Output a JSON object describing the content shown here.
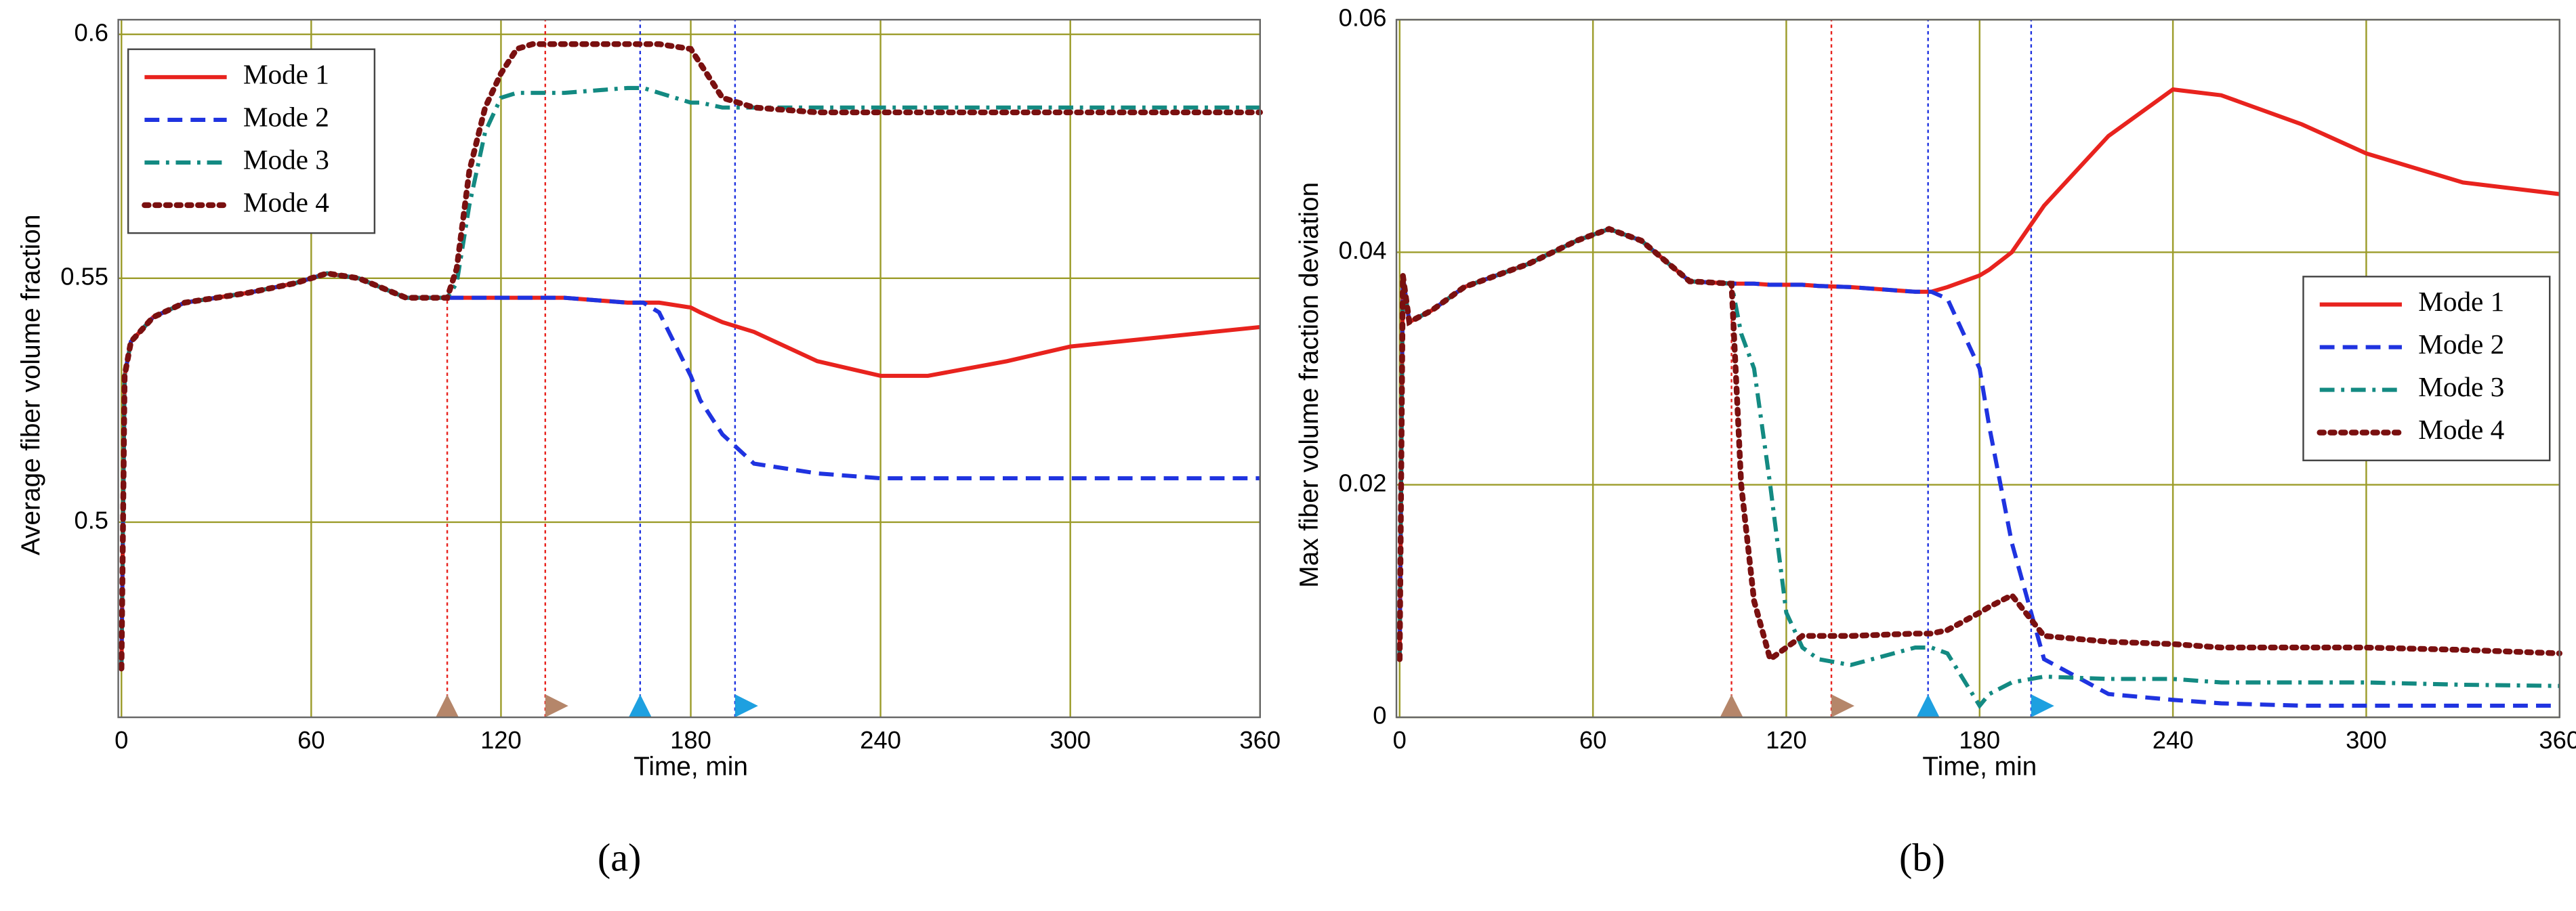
{
  "chart_data": [
    {
      "type": "line",
      "caption": "(a)",
      "x_label": "Time, min",
      "y_label": "Average fiber volume fraction",
      "xlim": [
        -1,
        360
      ],
      "ylim": [
        0.46,
        0.603
      ],
      "xticks": [
        0,
        60,
        120,
        180,
        240,
        300,
        360
      ],
      "yticks": [
        0.5,
        0.55,
        0.6
      ],
      "grid": true,
      "legend": "upper left",
      "x": [
        0,
        1,
        3,
        10,
        20,
        40,
        55,
        65,
        75,
        90,
        103,
        106,
        110,
        115,
        120,
        125,
        130,
        140,
        160,
        165,
        170,
        180,
        183,
        190,
        200,
        220,
        240,
        255,
        280,
        300,
        330,
        360
      ],
      "series": [
        {
          "name": "Mode 1",
          "color": "#e8231e",
          "style": "solid",
          "values": [
            0.47,
            0.53,
            0.537,
            0.542,
            0.545,
            0.547,
            0.549,
            0.551,
            0.55,
            0.546,
            0.546,
            0.546,
            0.546,
            0.546,
            0.546,
            0.546,
            0.546,
            0.546,
            0.545,
            0.545,
            0.545,
            0.544,
            0.543,
            0.541,
            0.539,
            0.533,
            0.53,
            0.53,
            0.533,
            0.536,
            0.538,
            0.54
          ]
        },
        {
          "name": "Mode 2",
          "color": "#1f33e0",
          "style": "dashed",
          "values": [
            0.47,
            0.53,
            0.537,
            0.542,
            0.545,
            0.547,
            0.549,
            0.551,
            0.55,
            0.546,
            0.546,
            0.546,
            0.546,
            0.546,
            0.546,
            0.546,
            0.546,
            0.546,
            0.545,
            0.545,
            0.543,
            0.53,
            0.525,
            0.518,
            0.512,
            0.51,
            0.509,
            0.509,
            0.509,
            0.509,
            0.509,
            0.509
          ]
        },
        {
          "name": "Mode 3",
          "color": "#138a82",
          "style": "dashdot",
          "values": [
            0.47,
            0.53,
            0.537,
            0.542,
            0.545,
            0.547,
            0.549,
            0.551,
            0.55,
            0.546,
            0.546,
            0.549,
            0.565,
            0.58,
            0.587,
            0.588,
            0.588,
            0.588,
            0.589,
            0.589,
            0.588,
            0.586,
            0.586,
            0.585,
            0.585,
            0.585,
            0.585,
            0.585,
            0.585,
            0.585,
            0.585,
            0.585
          ]
        },
        {
          "name": "Mode 4",
          "color": "#7a1010",
          "style": "dotted",
          "values": [
            0.47,
            0.53,
            0.537,
            0.542,
            0.545,
            0.547,
            0.549,
            0.551,
            0.55,
            0.546,
            0.546,
            0.552,
            0.572,
            0.585,
            0.592,
            0.597,
            0.598,
            0.598,
            0.598,
            0.598,
            0.598,
            0.597,
            0.594,
            0.587,
            0.585,
            0.584,
            0.584,
            0.584,
            0.584,
            0.584,
            0.584,
            0.584
          ]
        }
      ],
      "markers": [
        {
          "x": 103,
          "line_color": "#e8231e",
          "color": "#b5866a",
          "shape": "up"
        },
        {
          "x": 134,
          "line_color": "#e8231e",
          "color": "#b5866a",
          "shape": "right"
        },
        {
          "x": 164,
          "line_color": "#1f33e0",
          "color": "#1ea0e0",
          "shape": "up"
        },
        {
          "x": 194,
          "line_color": "#1f33e0",
          "color": "#1ea0e0",
          "shape": "right"
        }
      ]
    },
    {
      "type": "line",
      "caption": "(b)",
      "x_label": "Time, min",
      "y_label": "Max fiber volume fraction deviation",
      "xlim": [
        -1,
        360
      ],
      "ylim": [
        0,
        0.06
      ],
      "xticks": [
        0,
        60,
        120,
        180,
        240,
        300,
        360
      ],
      "yticks": [
        0,
        0.02,
        0.04,
        0.06
      ],
      "grid": true,
      "legend": "center right",
      "x": [
        0,
        1,
        3,
        10,
        20,
        40,
        55,
        65,
        75,
        90,
        103,
        106,
        110,
        115,
        120,
        125,
        130,
        140,
        160,
        165,
        170,
        180,
        183,
        190,
        200,
        220,
        240,
        255,
        280,
        300,
        330,
        360
      ],
      "series": [
        {
          "name": "Mode 1",
          "color": "#e8231e",
          "style": "solid",
          "values": [
            0.005,
            0.038,
            0.034,
            0.035,
            0.037,
            0.039,
            0.041,
            0.042,
            0.041,
            0.0375,
            0.0373,
            0.0373,
            0.0373,
            0.0372,
            0.0372,
            0.0372,
            0.0371,
            0.037,
            0.0366,
            0.0366,
            0.037,
            0.038,
            0.0385,
            0.04,
            0.044,
            0.05,
            0.054,
            0.0535,
            0.051,
            0.0485,
            0.046,
            0.045
          ]
        },
        {
          "name": "Mode 2",
          "color": "#1f33e0",
          "style": "dashed",
          "values": [
            0.005,
            0.038,
            0.034,
            0.035,
            0.037,
            0.039,
            0.041,
            0.042,
            0.041,
            0.0375,
            0.0373,
            0.0373,
            0.0373,
            0.0372,
            0.0372,
            0.0372,
            0.0371,
            0.037,
            0.0366,
            0.0366,
            0.036,
            0.03,
            0.025,
            0.015,
            0.005,
            0.002,
            0.0015,
            0.0012,
            0.001,
            0.001,
            0.001,
            0.001
          ]
        },
        {
          "name": "Mode 3",
          "color": "#138a82",
          "style": "dashdot",
          "values": [
            0.005,
            0.038,
            0.034,
            0.035,
            0.037,
            0.039,
            0.041,
            0.042,
            0.041,
            0.0375,
            0.0373,
            0.033,
            0.03,
            0.02,
            0.009,
            0.006,
            0.005,
            0.0045,
            0.006,
            0.006,
            0.0055,
            0.001,
            0.002,
            0.003,
            0.0035,
            0.0033,
            0.0033,
            0.003,
            0.003,
            0.003,
            0.0028,
            0.0027
          ]
        },
        {
          "name": "Mode 4",
          "color": "#7a1010",
          "style": "dotted",
          "values": [
            0.005,
            0.038,
            0.034,
            0.035,
            0.037,
            0.039,
            0.041,
            0.042,
            0.041,
            0.0375,
            0.0373,
            0.02,
            0.01,
            0.005,
            0.006,
            0.007,
            0.007,
            0.007,
            0.0072,
            0.0072,
            0.0075,
            0.009,
            0.0095,
            0.0105,
            0.007,
            0.0065,
            0.0063,
            0.006,
            0.006,
            0.006,
            0.0058,
            0.0055
          ]
        }
      ],
      "markers": [
        {
          "x": 103,
          "line_color": "#e8231e",
          "color": "#b5866a",
          "shape": "up"
        },
        {
          "x": 134,
          "line_color": "#e8231e",
          "color": "#b5866a",
          "shape": "right"
        },
        {
          "x": 164,
          "line_color": "#1f33e0",
          "color": "#1ea0e0",
          "shape": "up"
        },
        {
          "x": 196,
          "line_color": "#1f33e0",
          "color": "#1ea0e0",
          "shape": "right"
        }
      ]
    }
  ]
}
